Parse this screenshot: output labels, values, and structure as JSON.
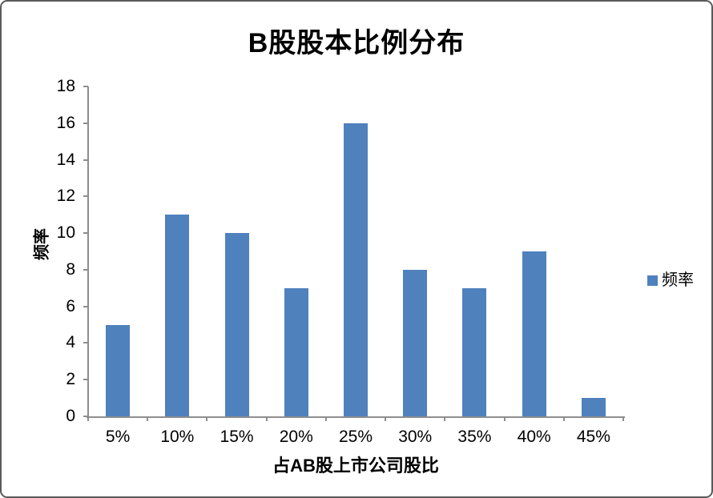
{
  "chart_data": {
    "type": "bar",
    "title": "B股股本比例分布",
    "categories": [
      "5%",
      "10%",
      "15%",
      "20%",
      "25%",
      "30%",
      "35%",
      "40%",
      "45%"
    ],
    "series": [
      {
        "name": "频率",
        "values": [
          5,
          11,
          10,
          7,
          16,
          8,
          7,
          9,
          1
        ]
      }
    ],
    "xlabel": "占AB股上市公司股比",
    "ylabel": "频率",
    "ylim": [
      0,
      18
    ],
    "yticks": [
      0,
      2,
      4,
      6,
      8,
      10,
      12,
      14,
      16,
      18
    ],
    "grid": false,
    "legend_position": "right",
    "bar_color": "#4F81BD",
    "axis_color": "#8E8E8E",
    "text_color": "#000000"
  },
  "legend": {
    "label": "频率"
  }
}
